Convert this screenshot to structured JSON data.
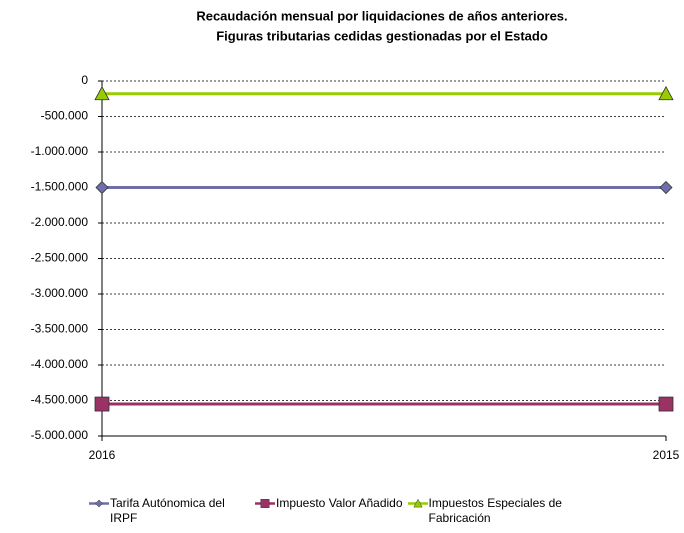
{
  "chart_data": {
    "type": "line",
    "title": "Recaudación mensual por liquidaciones de años anteriores.",
    "subtitle": "Figuras tributarias cedidas gestionadas por el Estado",
    "categories": [
      "2016",
      "2015"
    ],
    "series": [
      {
        "name": "Tarifa Autónomica del IRPF",
        "color": "#6e6eaa",
        "marker": "diamond",
        "values": [
          -1500000,
          -1500000
        ]
      },
      {
        "name": "Impuesto Valor Añadido",
        "color": "#993366",
        "marker": "square",
        "values": [
          -4550000,
          -4550000
        ]
      },
      {
        "name": "Impuestos Especiales de Fabricación",
        "color": "#99cc00",
        "marker": "triangle",
        "values": [
          -180000,
          -180000
        ]
      }
    ],
    "ylim": [
      -5000000,
      0
    ],
    "yticks": [
      0,
      {
        "value": -500000,
        "label": "-500.000"
      },
      {
        "value": -1000000,
        "label": "-1.000.000"
      },
      {
        "value": -1500000,
        "label": "-1.500.000"
      },
      {
        "value": -2000000,
        "label": "-2.000.000"
      },
      {
        "value": -2500000,
        "label": "-2.500.000"
      },
      {
        "value": -3000000,
        "label": "-3.000.000"
      },
      {
        "value": -3500000,
        "label": "-3.500.000"
      },
      {
        "value": -4000000,
        "label": "-4.000.000"
      },
      {
        "value": -4500000,
        "label": "-4.500.000"
      },
      {
        "value": -5000000,
        "label": "-5.000.000"
      }
    ],
    "grid": true,
    "legend": "bottom"
  }
}
